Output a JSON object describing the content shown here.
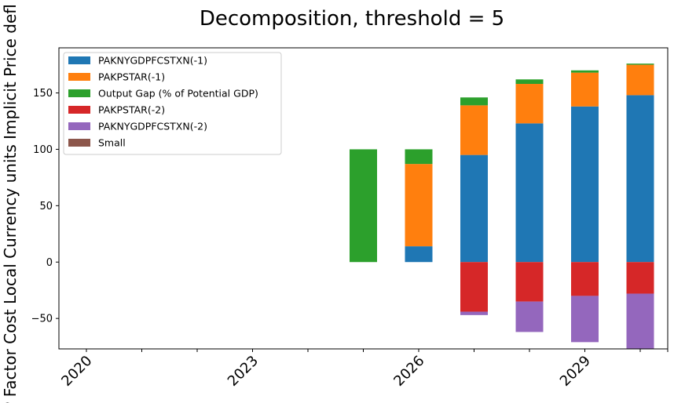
{
  "chart_data": {
    "type": "bar",
    "stacked": true,
    "title": "Decomposition, threshold = 5",
    "xlabel": "",
    "ylabel": "P Factor Cost Local Currency units Implicit Price defl",
    "ylim": [
      -77,
      190
    ],
    "yticks": [
      -50,
      0,
      50,
      100,
      150
    ],
    "ytick_labels": [
      "−50",
      "0",
      "50",
      "100",
      "150"
    ],
    "categories": [
      "2020",
      "2021",
      "2022",
      "2023",
      "2024",
      "2025",
      "2026",
      "2027",
      "2028",
      "2029",
      "2030"
    ],
    "xtick_labels": [
      "2020",
      "",
      "",
      "2023",
      "",
      "",
      "2026",
      "",
      "",
      "2029",
      ""
    ],
    "legend_position": "upper-left",
    "grid": false,
    "series": [
      {
        "name": "PAKNYGDPFCSTXN(-1)",
        "color": "#1f77b4",
        "values": [
          0,
          0,
          0,
          0,
          0,
          0,
          14,
          95,
          123,
          138,
          148
        ]
      },
      {
        "name": "PAKPSTAR(-1)",
        "color": "#ff7f0e",
        "values": [
          0,
          0,
          0,
          0,
          0,
          0,
          73,
          44,
          35,
          30,
          27
        ]
      },
      {
        "name": "Output Gap (% of Potential GDP)",
        "color": "#2ca02c",
        "values": [
          0,
          0,
          0,
          0,
          0,
          100,
          13,
          7,
          4,
          2,
          1
        ]
      },
      {
        "name": "PAKPSTAR(-2)",
        "color": "#d62728",
        "values": [
          0,
          0,
          0,
          0,
          0,
          0,
          0,
          -44,
          -35,
          -30,
          -28
        ]
      },
      {
        "name": "PAKNYGDPFCSTXN(-2)",
        "color": "#9467bd",
        "values": [
          0,
          0,
          0,
          0,
          0,
          0,
          0,
          -3,
          -27,
          -41,
          -49
        ]
      },
      {
        "name": "Small",
        "color": "#8c564b",
        "values": [
          0,
          0,
          0,
          0,
          0,
          0,
          0,
          0,
          0,
          0,
          0
        ]
      }
    ]
  }
}
